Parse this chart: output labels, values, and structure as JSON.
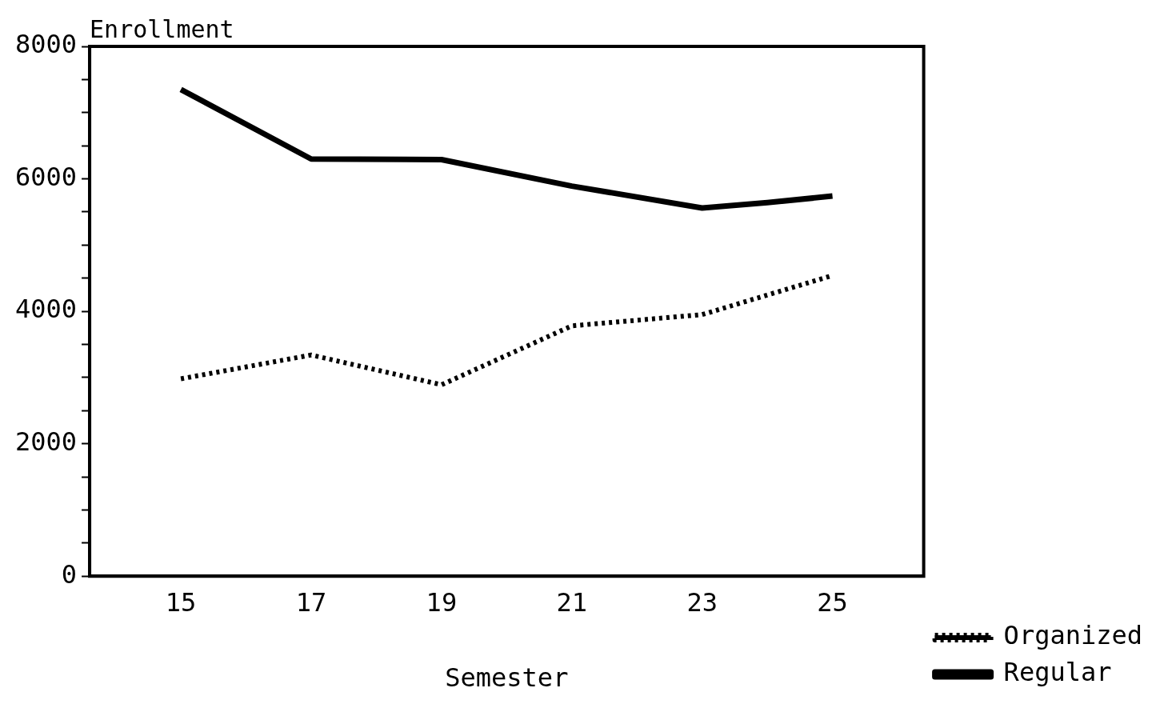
{
  "chart_data": {
    "type": "line",
    "xlabel": "Semester",
    "ylabel": "Enrollment",
    "series": [
      {
        "name": "Organized",
        "color": "#000000",
        "line_style": "dotted",
        "x": [
          15,
          17,
          19,
          21,
          23,
          25
        ],
        "values": [
          2980,
          3340,
          2890,
          3780,
          3950,
          4540
        ]
      },
      {
        "name": "Regular",
        "color": "#000000",
        "line_style": "solid",
        "x": [
          15,
          17,
          19,
          21,
          23,
          24,
          25
        ],
        "values": [
          7350,
          6300,
          6290,
          5890,
          5560,
          5640,
          5740
        ]
      }
    ],
    "xlim": [
      13.6,
      26.4
    ],
    "xticks": [
      15,
      17,
      19,
      21,
      23,
      25
    ],
    "ylim": [
      0,
      8000
    ],
    "yticks": [
      0,
      {
        "value": 500,
        "label": null
      },
      {
        "value": 1000,
        "label": null
      },
      {
        "value": 1500,
        "label": null
      },
      2000,
      {
        "value": 2500,
        "label": null
      },
      {
        "value": 3000,
        "label": null
      },
      {
        "value": 3500,
        "label": null
      },
      4000,
      {
        "value": 4500,
        "label": null
      },
      {
        "value": 5000,
        "label": null
      },
      {
        "value": 5500,
        "label": null
      },
      6000,
      {
        "value": 6500,
        "label": null
      },
      {
        "value": 7000,
        "label": null
      },
      {
        "value": 7500,
        "label": null
      },
      8000
    ],
    "grid": false,
    "legend": "right",
    "marker": "none"
  }
}
